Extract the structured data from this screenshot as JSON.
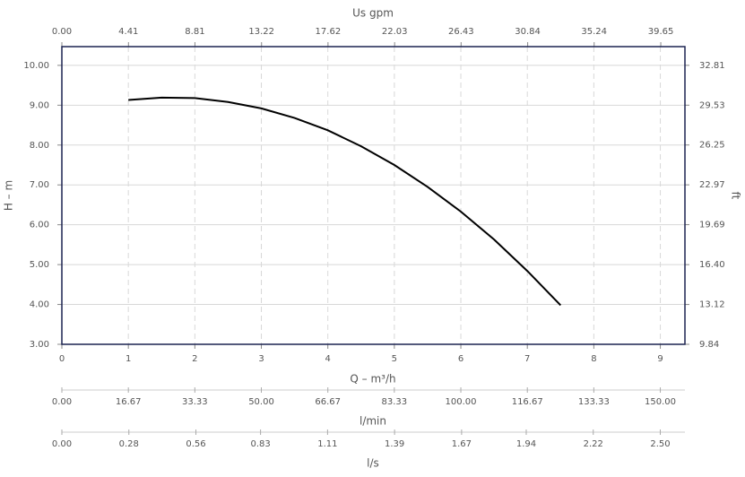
{
  "chart_data": {
    "type": "line",
    "x": [
      1,
      1.5,
      2,
      2.5,
      3,
      3.5,
      4,
      4.5,
      5,
      5.5,
      6,
      6.5,
      7,
      7.5
    ],
    "series": [
      {
        "color": "#000000",
        "values": [
          9.13,
          9.19,
          9.18,
          9.08,
          8.92,
          8.68,
          8.37,
          7.97,
          7.5,
          6.95,
          6.33,
          5.63,
          4.84,
          3.98
        ]
      }
    ],
    "x_label": "Q – m³/h",
    "xlim": [
      0,
      9.37
    ],
    "xticks": [
      0,
      1,
      2,
      3,
      4,
      5,
      6,
      7,
      8,
      9
    ],
    "y_label": "H – m",
    "ylim": [
      3,
      10.47
    ],
    "yticks": [
      {
        "value": 3,
        "label": "3.00"
      },
      {
        "value": 4,
        "label": "4.00"
      },
      {
        "value": 5,
        "label": "5.00"
      },
      {
        "value": 6,
        "label": "6.00"
      },
      {
        "value": 7,
        "label": "7.00"
      },
      {
        "value": 8,
        "label": "8.00"
      },
      {
        "value": 9,
        "label": "9.00"
      },
      {
        "value": 10,
        "label": "10.00"
      }
    ],
    "y2_label": "ft",
    "y2lim": [
      9.84,
      34.35
    ],
    "y2ticks": [
      9.84,
      13.12,
      {
        "value": 16.4,
        "label": "16.40"
      },
      19.69,
      22.97,
      26.25,
      29.53,
      32.81
    ],
    "top_axis": {
      "label": "Us gpm",
      "lim": [
        0,
        41.25
      ],
      "ticks": [
        {
          "value": 0,
          "label": "0.00"
        },
        4.41,
        8.81,
        13.22,
        17.62,
        22.03,
        26.43,
        30.84,
        35.24,
        39.65
      ]
    },
    "bottom_axes": [
      {
        "label": "l/min",
        "lim": [
          0,
          156.17
        ],
        "ticks": [
          {
            "value": 0,
            "label": "0.00"
          },
          16.67,
          33.33,
          {
            "value": 50,
            "label": "50.00"
          },
          66.67,
          83.33,
          {
            "value": 100,
            "label": "100.00"
          },
          116.67,
          133.33,
          {
            "value": 150,
            "label": "150.00"
          }
        ]
      },
      {
        "label": "l/s",
        "lim": [
          0,
          2.603
        ],
        "ticks": [
          {
            "value": 0,
            "label": "0.00"
          },
          0.28,
          0.56,
          0.83,
          1.11,
          1.39,
          1.67,
          1.94,
          2.22,
          {
            "value": 2.5,
            "label": "2.50"
          }
        ]
      }
    ],
    "grid": true
  }
}
